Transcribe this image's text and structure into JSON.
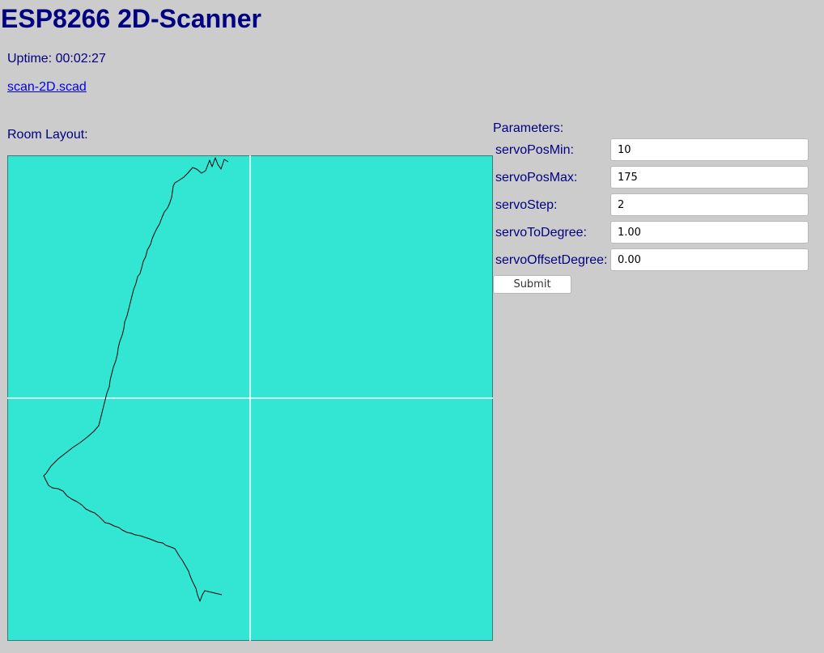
{
  "page": {
    "title": "ESP8266 2D-Scanner",
    "uptime_label": "Uptime: 00:02:27",
    "link_text": "scan-2D.scad"
  },
  "room": {
    "label": "Room Layout:",
    "background_color": "#33e6d4",
    "axis_color": "#ffffff",
    "outline_color": "#000000"
  },
  "parameters": {
    "label": "Parameters:",
    "fields": [
      {
        "label": "servoPosMin:",
        "value": "10"
      },
      {
        "label": "servoPosMax:",
        "value": "175"
      },
      {
        "label": "servoStep:",
        "value": "2"
      },
      {
        "label": "servoToDegree:",
        "value": "1.00"
      },
      {
        "label": "servoOffsetDegree:",
        "value": "0.00"
      }
    ],
    "submit_label": "Submit"
  },
  "colors": {
    "background": "#cccccc",
    "text": "#000080",
    "link": "#0000ee"
  }
}
